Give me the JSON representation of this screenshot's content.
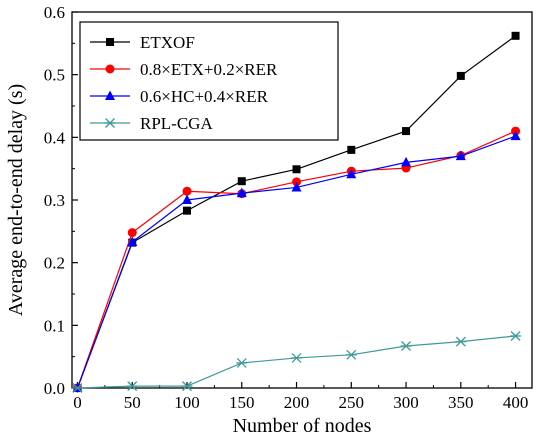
{
  "chart_data": {
    "type": "line",
    "title": "",
    "xlabel": "Number of nodes",
    "ylabel": "Average end-to-end delay (s)",
    "x": [
      0,
      50,
      100,
      150,
      200,
      250,
      300,
      350,
      400
    ],
    "xlim": [
      -5,
      415
    ],
    "ylim": [
      0,
      0.6
    ],
    "xticks": [
      0,
      50,
      100,
      150,
      200,
      250,
      300,
      350,
      400
    ],
    "yticks": [
      0.0,
      0.1,
      0.2,
      0.3,
      0.4,
      0.5,
      0.6
    ],
    "xtick_labels": [
      "0",
      "50",
      "100",
      "150",
      "200",
      "250",
      "300",
      "350",
      "400"
    ],
    "ytick_labels": [
      "0.0",
      "0.1",
      "0.2",
      "0.3",
      "0.4",
      "0.5",
      "0.6"
    ],
    "grid": false,
    "legend_position": "top-left",
    "series": [
      {
        "name": "ETXOF",
        "color": "#000000",
        "marker": "square",
        "values": [
          0.0,
          0.232,
          0.283,
          0.33,
          0.349,
          0.38,
          0.41,
          0.498,
          0.562
        ]
      },
      {
        "name": "0.8×ETX+0.2×RER",
        "color": "#ff0000",
        "marker": "circle",
        "values": [
          0.0,
          0.248,
          0.314,
          0.31,
          0.329,
          0.346,
          0.351,
          0.371,
          0.41
        ]
      },
      {
        "name": "0.6×HC+0.4×RER",
        "color": "#0000ff",
        "marker": "triangle",
        "values": [
          0.0,
          0.233,
          0.3,
          0.311,
          0.32,
          0.341,
          0.36,
          0.37,
          0.402
        ]
      },
      {
        "name": "RPL-CGA",
        "color": "#3f9a9a",
        "marker": "asterisk",
        "values": [
          0.0,
          0.003,
          0.003,
          0.04,
          0.048,
          0.053,
          0.067,
          0.074,
          0.083
        ]
      }
    ]
  }
}
